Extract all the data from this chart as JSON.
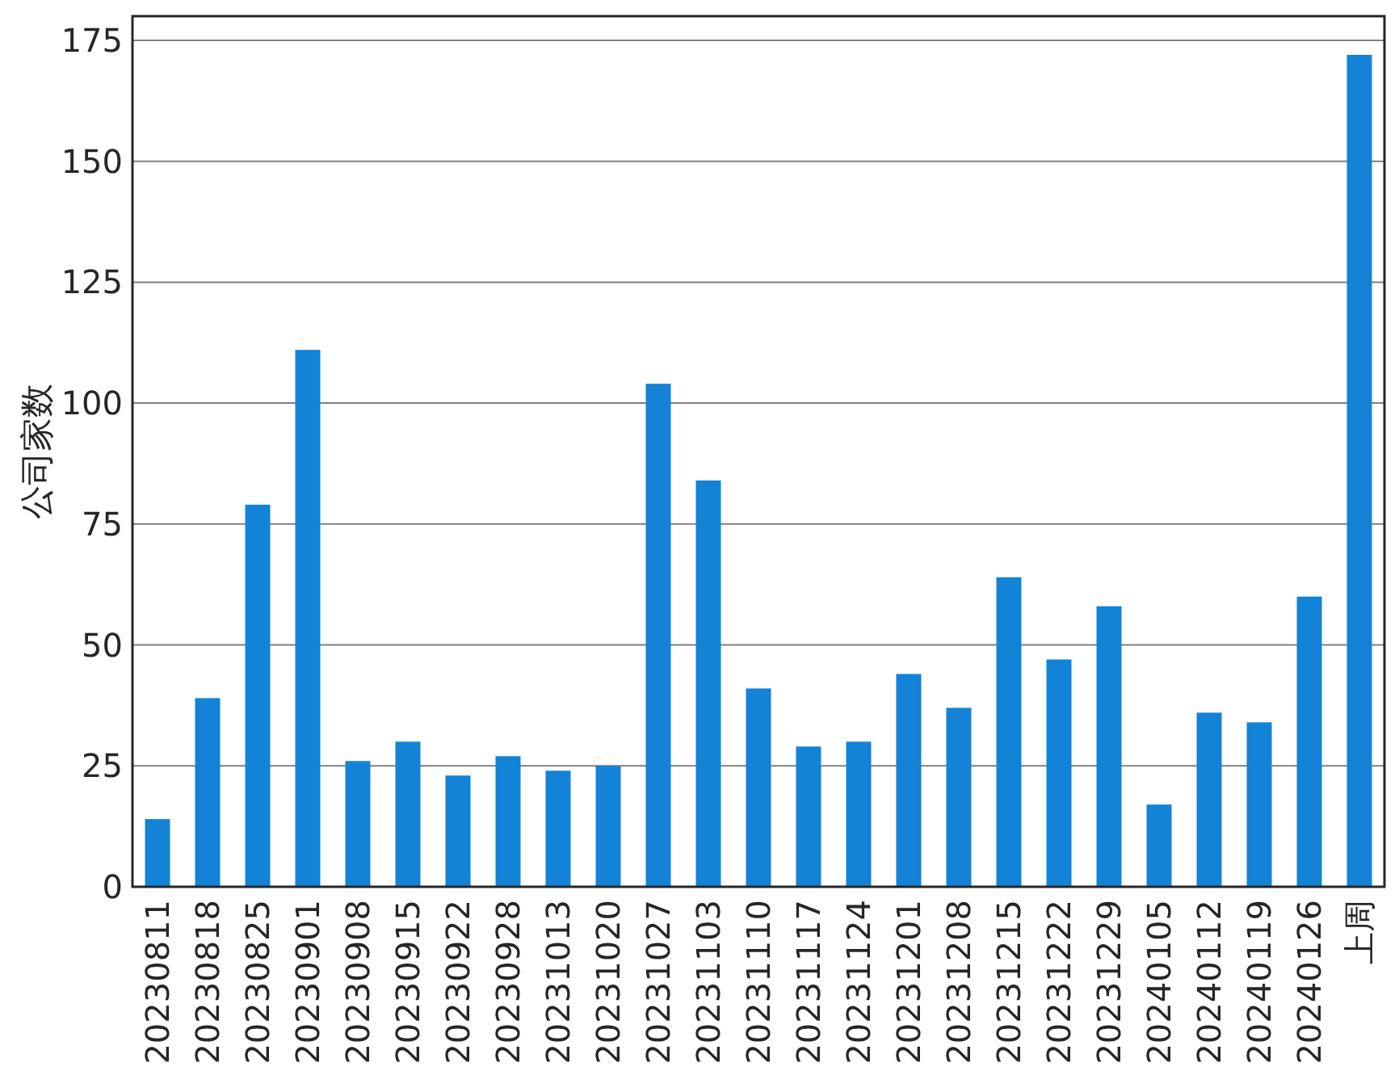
{
  "chart_data": {
    "type": "bar",
    "ylabel": "公司家数",
    "categories": [
      "20230811",
      "20230818",
      "20230825",
      "20230901",
      "20230908",
      "20230915",
      "20230922",
      "20230928",
      "20231013",
      "20231020",
      "20231027",
      "20231103",
      "20231110",
      "20231117",
      "20231124",
      "20231201",
      "20231208",
      "20231215",
      "20231222",
      "20231229",
      "20240105",
      "20240112",
      "20240119",
      "20240126",
      "上周"
    ],
    "values": [
      14,
      39,
      79,
      111,
      26,
      30,
      23,
      27,
      24,
      25,
      104,
      84,
      41,
      29,
      30,
      44,
      37,
      64,
      47,
      58,
      17,
      36,
      34,
      60,
      172
    ],
    "color": "#1283d6",
    "ylim": [
      0,
      180
    ],
    "yticks": [
      0,
      25,
      50,
      75,
      100,
      125,
      150,
      175
    ],
    "grid": "y"
  }
}
